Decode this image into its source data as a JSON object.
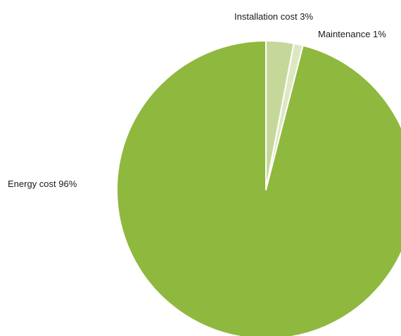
{
  "chart_data": {
    "type": "pie",
    "title": "",
    "start_angle_deg": 0,
    "direction": "clockwise",
    "slices": [
      {
        "label": "Installation cost 3%",
        "category": "Installation cost",
        "value": 3,
        "color": "#c5d89a"
      },
      {
        "label": "Maintenance 1%",
        "category": "Maintenance",
        "value": 1,
        "color": "#dde8c2"
      },
      {
        "label": "Energy cost 96%",
        "category": "Energy cost",
        "value": 96,
        "color": "#8fb83e"
      }
    ],
    "slice_border_color": "#ffffff",
    "legend": "none"
  }
}
